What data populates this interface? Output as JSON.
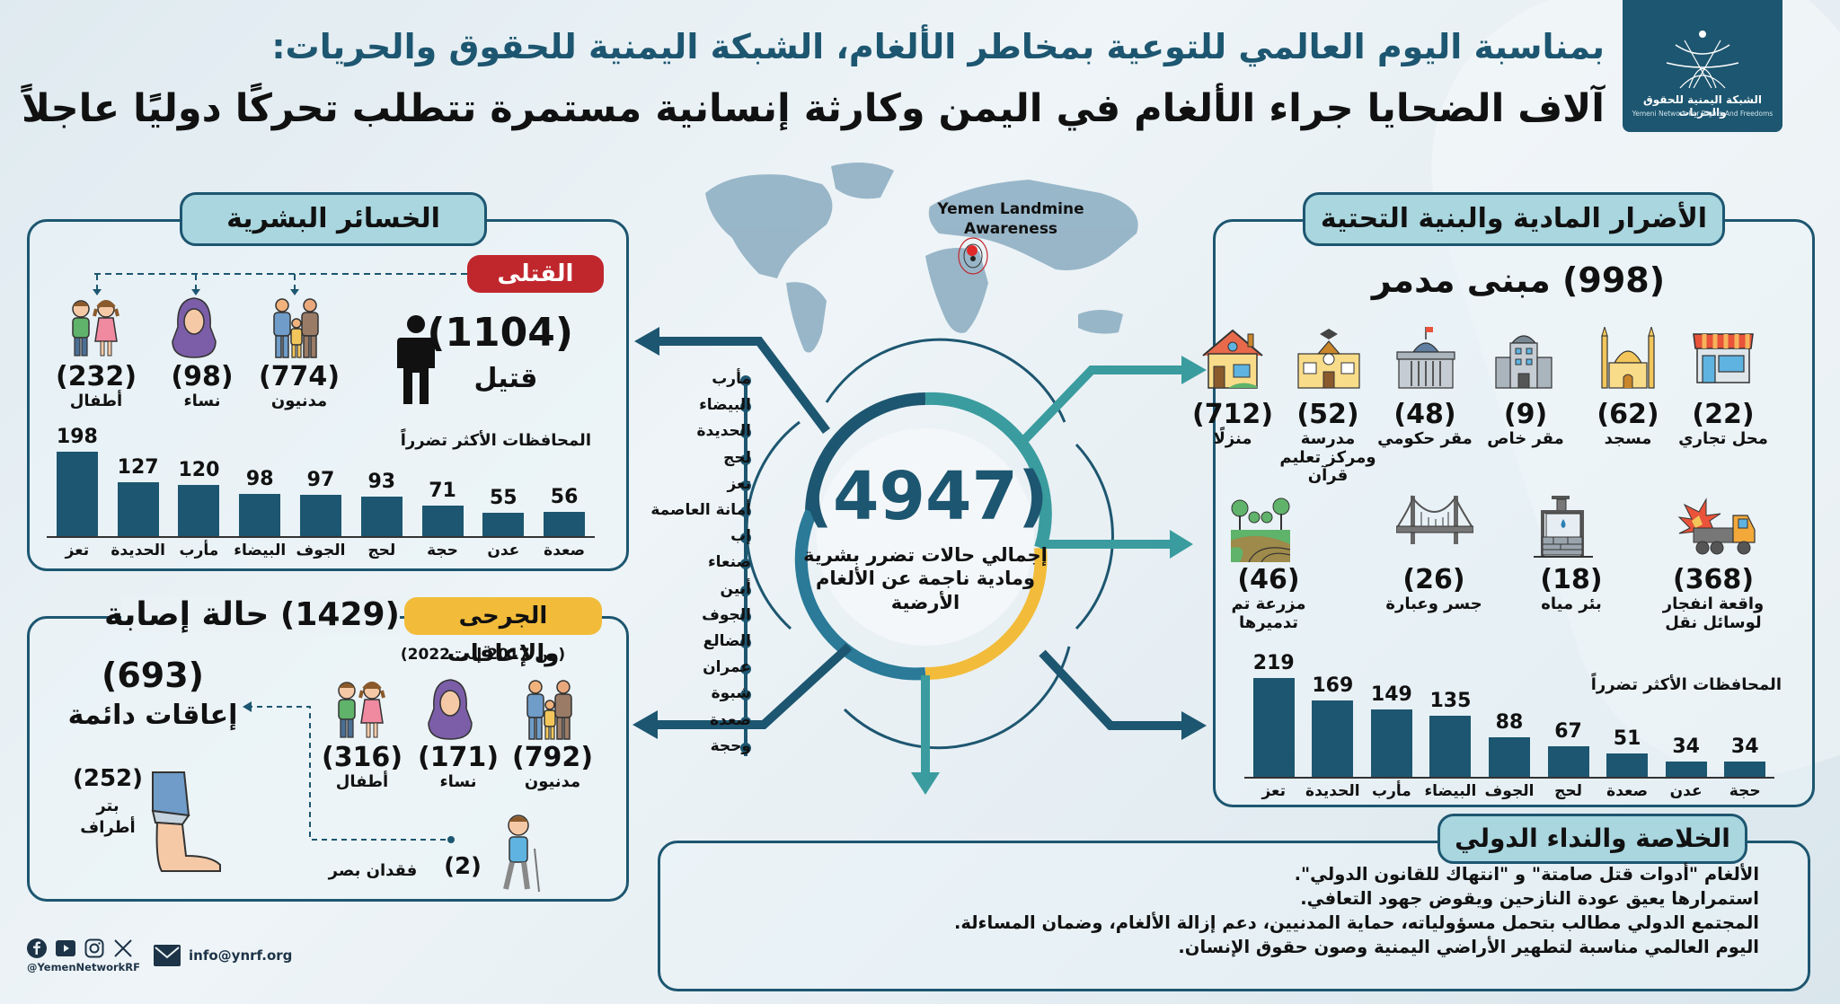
{
  "header": {
    "title_line1": "بمناسبة اليوم العالمي للتوعية بمخاطر الألغام، الشبكة اليمنية للحقوق والحريات:",
    "title_line2": "آلاف الضحايا جراء الألغام في اليمن وكارثة إنسانية مستمرة تتطلب تحركًا دوليًا عاجلاً",
    "logo": {
      "name_ar": "الشبكة اليمنية للحقوق والحريات",
      "name_en": "Yemeni Network For Rights And Freedoms"
    }
  },
  "map": {
    "label_line1": "Yemen Landmine",
    "label_line2": "Awareness"
  },
  "colors": {
    "primary": "#1d5670",
    "teal": "#3a9c9e",
    "accent_red": "#c0272d",
    "accent_yellow": "#f2bc3a",
    "pill_bg": "#a9d6df"
  },
  "human_losses": {
    "title": "الخسائر البشرية",
    "killed": {
      "badge": "القتلى",
      "total": "(1104)",
      "total_label": "قتيل",
      "breakdown": [
        {
          "value": "(774)",
          "label": "مدنيون",
          "icon": "family-icon"
        },
        {
          "value": "(98)",
          "label": "نساء",
          "icon": "woman-hijab-icon"
        },
        {
          "value": "(232)",
          "label": "أطفال",
          "icon": "children-icon"
        }
      ],
      "chart_title": "المحافظات الأكثر تضرراً"
    },
    "injured": {
      "badge": "الجرحى والإعاقات",
      "total": "(1429) حالة إصابة",
      "period": "(من  2017  إلى 2022)",
      "breakdown": [
        {
          "value": "(792)",
          "label": "مدنيون",
          "icon": "family-icon"
        },
        {
          "value": "(171)",
          "label": "نساء",
          "icon": "woman-hijab-icon"
        },
        {
          "value": "(316)",
          "label": "أطفال",
          "icon": "children-icon"
        }
      ],
      "permanent": {
        "value": "(693)",
        "label": "إعاقات دائمة"
      },
      "amputation": {
        "value": "(252)",
        "label_line1": "بتر",
        "label_line2": "أطراف"
      },
      "blindness": {
        "value": "(2)",
        "label": "فقدان بصر"
      }
    }
  },
  "center": {
    "total": "(4947)",
    "label": "إجمالي حالات تضرر بشرية ومادية ناجمة عن الألغام الأرضية",
    "governorates": [
      "مأرب",
      "البيضاء",
      "الحديدة",
      "لحج",
      "تعز",
      "أمانة العاصمة",
      "إب",
      "صنعاء",
      "أبين",
      "الجوف",
      "الضالع",
      "عمران",
      "شبوة",
      "صعدة",
      "وحجة"
    ]
  },
  "material": {
    "title": "الأضرار المادية والبنية التحتية",
    "buildings_total": "(998) مبنى مدمر",
    "row1": [
      {
        "value": "(22)",
        "label": "محل تجاري",
        "icon": "shop-icon"
      },
      {
        "value": "(62)",
        "label": "مسجد",
        "icon": "mosque-icon"
      },
      {
        "value": "(9)",
        "label": "مقر خاص",
        "icon": "office-building-icon"
      },
      {
        "value": "(48)",
        "label": "مقر حكومي",
        "icon": "government-building-icon"
      },
      {
        "value": "(52)",
        "label": "مدرسة ومركز تعليم قرآن",
        "icon": "school-icon"
      },
      {
        "value": "(712)",
        "label": "منزلًا",
        "icon": "house-icon"
      }
    ],
    "row2": [
      {
        "value": "(368)",
        "label": "واقعة انفجار لوسائل نقل",
        "icon": "truck-explosion-icon"
      },
      {
        "value": "(18)",
        "label": "بئر مياه",
        "icon": "water-well-icon"
      },
      {
        "value": "(26)",
        "label": "جسر وعبارة",
        "icon": "bridge-icon"
      },
      {
        "value": "(46)",
        "label": "مزرعة تم تدميرها",
        "icon": "farm-icon"
      }
    ],
    "chart_title": "المحافظات الأكثر تضرراً"
  },
  "conclusion": {
    "title": "الخلاصة والنداء الدولي",
    "lines": [
      "الألغام \"أدوات قتل صامتة\" و \"انتهاك للقانون الدولي\".",
      "استمرارها يعيق عودة النازحين ويقوض جهود التعافي.",
      "المجتمع الدولي مطالب بتحمل مسؤولياته، حماية المدنيين، دعم إزالة الألغام، وضمان المساءلة.",
      "اليوم العالمي مناسبة لتطهير الأراضي اليمنية وصون حقوق الإنسان."
    ]
  },
  "footer": {
    "social_icons": [
      "facebook-icon",
      "youtube-icon",
      "instagram-icon",
      "x-icon"
    ],
    "handle": "@YemenNetworkRF",
    "email": "info@ynrf.org"
  },
  "chart_data": [
    {
      "type": "bar",
      "title": "المحافظات الأكثر تضرراً (القتلى)",
      "categories": [
        "تعز",
        "الحديدة",
        "مأرب",
        "البيضاء",
        "الجوف",
        "لحج",
        "حجة",
        "عدن",
        "صعدة"
      ],
      "values": [
        198,
        127,
        120,
        98,
        97,
        93,
        71,
        55,
        56
      ],
      "xlabel": "",
      "ylabel": "",
      "grid": false
    },
    {
      "type": "bar",
      "title": "المحافظات الأكثر تضرراً (الأضرار المادية)",
      "categories": [
        "تعز",
        "الحديدة",
        "مأرب",
        "البيضاء",
        "الجوف",
        "لحج",
        "صعدة",
        "عدن",
        "حجة"
      ],
      "values": [
        219,
        169,
        149,
        135,
        88,
        67,
        51,
        34,
        34
      ],
      "xlabel": "",
      "ylabel": "",
      "grid": false
    }
  ]
}
